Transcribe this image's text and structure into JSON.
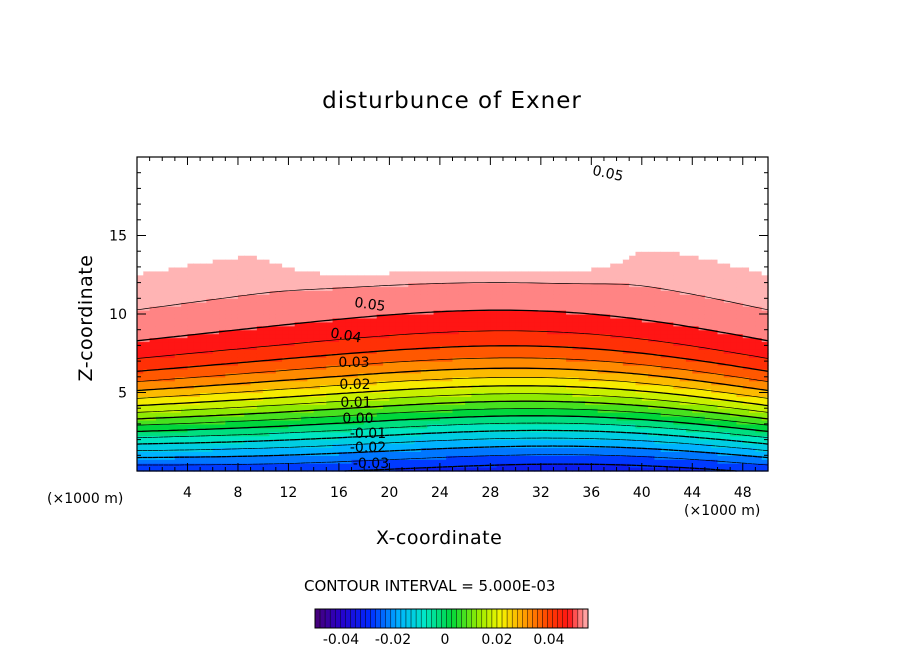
{
  "chart_data": {
    "type": "contour",
    "title": "disturbunce of Exner",
    "xlabel": "X-coordinate",
    "ylabel": "Z-coordinate",
    "x_unit_label_left": "(×1000 m)",
    "x_unit_label_right": "(×1000 m)",
    "xlim": [
      0,
      50
    ],
    "ylim": [
      0,
      20
    ],
    "x_ticks": [
      "4",
      "8",
      "12",
      "16",
      "20",
      "24",
      "28",
      "32",
      "36",
      "40",
      "44",
      "48"
    ],
    "y_ticks": [
      "5",
      "10",
      "15"
    ],
    "contour_interval_text": "CONTOUR INTERVAL = 5.000E-03",
    "contour_interval": 0.005,
    "contour_labels": [
      "0.05",
      "0.05",
      "0.04",
      "0.03",
      "0.02",
      "0.01",
      "0.00",
      "-0.01",
      "-0.02",
      "-0.03"
    ],
    "colorbar": {
      "range": [
        -0.05,
        0.055
      ],
      "tick_labels": [
        "-0.04",
        "-0.02",
        "0",
        "0.02",
        "0.04"
      ]
    }
  }
}
